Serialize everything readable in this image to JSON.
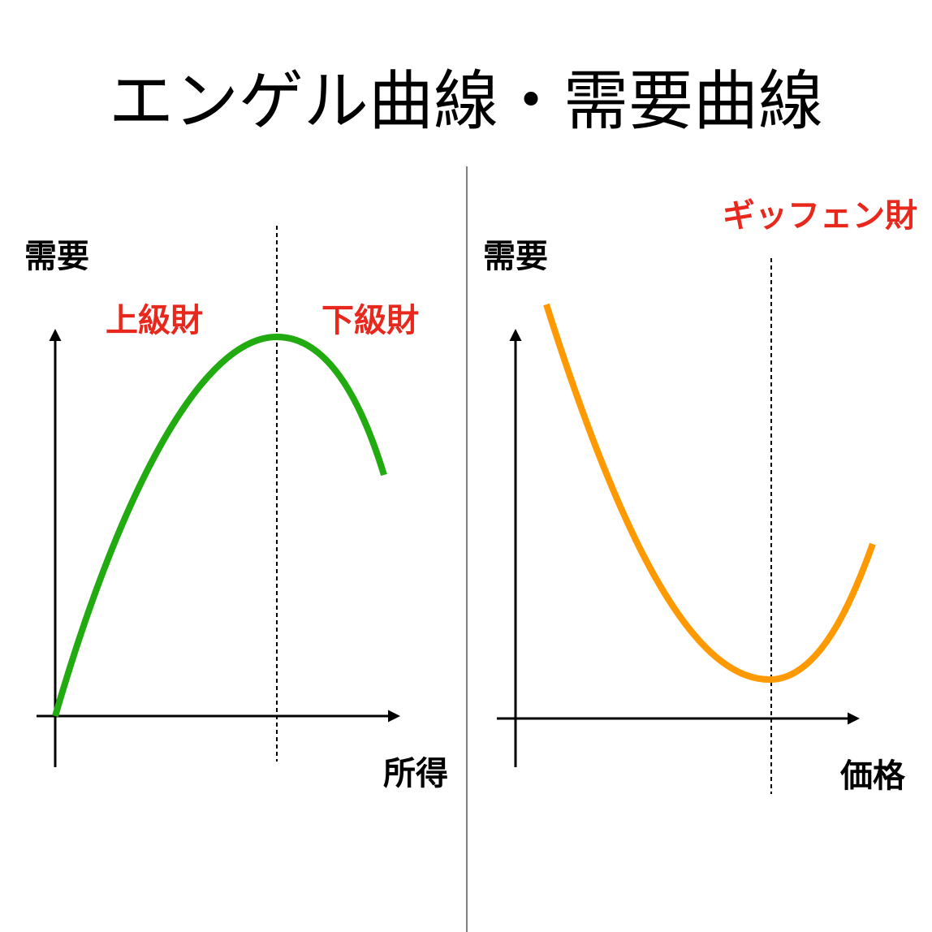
{
  "title": "エンゲル曲線・需要曲線",
  "panels": [
    {
      "y_label": "需要",
      "x_label": "所得",
      "labels": [
        "上級財",
        "下級財"
      ]
    },
    {
      "y_label": "需要",
      "x_label": "価格",
      "labels": [
        "ギッフェン財"
      ]
    }
  ]
}
